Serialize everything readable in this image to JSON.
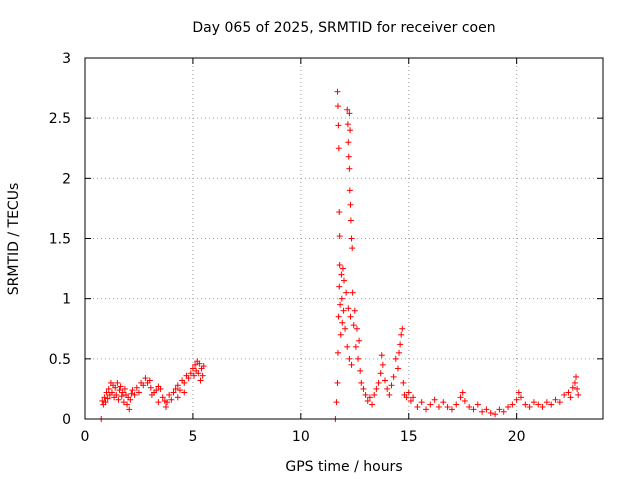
{
  "chart_data": {
    "type": "scatter",
    "title": "Day 065 of 2025, SRMTID for receiver coen",
    "xlabel": "GPS time / hours",
    "ylabel": "SRMTID / TECUs",
    "xlim": [
      0,
      24
    ],
    "ylim": [
      0,
      3
    ],
    "xticks": [
      0,
      5,
      10,
      15,
      20
    ],
    "xtick_labels": [
      "0",
      "5",
      "10",
      "15",
      "20"
    ],
    "yticks": [
      0,
      0.5,
      1,
      1.5,
      2,
      2.5,
      3
    ],
    "ytick_labels": [
      "0",
      "0.5",
      "1",
      "1.5",
      "2",
      "2.5",
      "3"
    ],
    "grid": true,
    "marker": "+",
    "color": "#ff0000",
    "series": [
      {
        "name": "SRMTID",
        "points": [
          [
            0.75,
            0.0
          ],
          [
            11.6,
            0.0
          ],
          [
            0.8,
            0.15
          ],
          [
            0.85,
            0.12
          ],
          [
            0.9,
            0.18
          ],
          [
            0.95,
            0.14
          ],
          [
            1.0,
            0.22
          ],
          [
            1.05,
            0.17
          ],
          [
            1.1,
            0.25
          ],
          [
            1.15,
            0.2
          ],
          [
            1.2,
            0.3
          ],
          [
            1.25,
            0.22
          ],
          [
            1.3,
            0.28
          ],
          [
            1.35,
            0.18
          ],
          [
            1.4,
            0.26
          ],
          [
            1.45,
            0.2
          ],
          [
            1.5,
            0.3
          ],
          [
            1.55,
            0.16
          ],
          [
            1.6,
            0.24
          ],
          [
            1.65,
            0.27
          ],
          [
            1.7,
            0.19
          ],
          [
            1.75,
            0.22
          ],
          [
            1.8,
            0.14
          ],
          [
            1.85,
            0.25
          ],
          [
            1.9,
            0.2
          ],
          [
            1.95,
            0.12
          ],
          [
            2.0,
            0.18
          ],
          [
            2.05,
            0.08
          ],
          [
            2.1,
            0.16
          ],
          [
            2.15,
            0.21
          ],
          [
            2.2,
            0.24
          ],
          [
            2.3,
            0.2
          ],
          [
            2.4,
            0.26
          ],
          [
            2.5,
            0.22
          ],
          [
            2.6,
            0.3
          ],
          [
            2.7,
            0.28
          ],
          [
            2.8,
            0.34
          ],
          [
            2.9,
            0.3
          ],
          [
            3.0,
            0.32
          ],
          [
            3.05,
            0.26
          ],
          [
            3.1,
            0.2
          ],
          [
            3.2,
            0.22
          ],
          [
            3.3,
            0.24
          ],
          [
            3.4,
            0.27
          ],
          [
            3.5,
            0.25
          ],
          [
            3.6,
            0.18
          ],
          [
            3.7,
            0.15
          ],
          [
            3.75,
            0.1
          ],
          [
            3.8,
            0.14
          ],
          [
            3.9,
            0.2
          ],
          [
            4.0,
            0.16
          ],
          [
            4.1,
            0.22
          ],
          [
            4.2,
            0.25
          ],
          [
            4.3,
            0.28
          ],
          [
            4.4,
            0.24
          ],
          [
            4.5,
            0.32
          ],
          [
            4.6,
            0.3
          ],
          [
            4.7,
            0.36
          ],
          [
            4.8,
            0.34
          ],
          [
            4.9,
            0.38
          ],
          [
            5.0,
            0.42
          ],
          [
            5.05,
            0.36
          ],
          [
            5.1,
            0.45
          ],
          [
            5.15,
            0.4
          ],
          [
            5.2,
            0.48
          ],
          [
            5.25,
            0.38
          ],
          [
            5.3,
            0.46
          ],
          [
            5.35,
            0.32
          ],
          [
            5.4,
            0.42
          ],
          [
            5.45,
            0.36
          ],
          [
            5.5,
            0.44
          ],
          [
            4.3,
            0.18
          ],
          [
            4.6,
            0.22
          ],
          [
            3.4,
            0.14
          ],
          [
            11.65,
            0.14
          ],
          [
            11.7,
            0.3
          ],
          [
            11.72,
            0.55
          ],
          [
            11.75,
            0.85
          ],
          [
            11.78,
            1.1
          ],
          [
            11.8,
            1.28
          ],
          [
            11.82,
            0.95
          ],
          [
            11.85,
            0.7
          ],
          [
            11.88,
            1.2
          ],
          [
            11.9,
            1.0
          ],
          [
            11.92,
            0.8
          ],
          [
            11.95,
            1.25
          ],
          [
            11.98,
            0.9
          ],
          [
            12.0,
            1.15
          ],
          [
            12.05,
            0.75
          ],
          [
            12.1,
            1.05
          ],
          [
            12.15,
            0.6
          ],
          [
            12.2,
            0.92
          ],
          [
            12.25,
            0.5
          ],
          [
            12.3,
            0.85
          ],
          [
            12.35,
            0.45
          ],
          [
            12.4,
            1.05
          ],
          [
            12.45,
            0.78
          ],
          [
            12.5,
            0.9
          ],
          [
            12.55,
            0.6
          ],
          [
            12.6,
            0.75
          ],
          [
            12.65,
            0.5
          ],
          [
            12.7,
            0.65
          ],
          [
            12.75,
            0.4
          ],
          [
            12.8,
            0.3
          ],
          [
            11.7,
            2.72
          ],
          [
            11.72,
            2.6
          ],
          [
            11.74,
            2.44
          ],
          [
            11.76,
            2.25
          ],
          [
            11.78,
            1.72
          ],
          [
            11.8,
            1.52
          ],
          [
            12.15,
            2.57
          ],
          [
            12.18,
            2.45
          ],
          [
            12.2,
            2.3
          ],
          [
            12.22,
            2.18
          ],
          [
            12.25,
            2.08
          ],
          [
            12.27,
            1.9
          ],
          [
            12.3,
            1.78
          ],
          [
            12.32,
            1.65
          ],
          [
            12.35,
            1.5
          ],
          [
            12.38,
            1.42
          ],
          [
            12.25,
            2.54
          ],
          [
            12.28,
            2.4
          ],
          [
            12.9,
            0.25
          ],
          [
            13.0,
            0.2
          ],
          [
            13.1,
            0.15
          ],
          [
            13.2,
            0.18
          ],
          [
            13.3,
            0.12
          ],
          [
            13.4,
            0.2
          ],
          [
            13.5,
            0.25
          ],
          [
            13.6,
            0.3
          ],
          [
            13.7,
            0.38
          ],
          [
            13.75,
            0.53
          ],
          [
            13.8,
            0.45
          ],
          [
            13.9,
            0.32
          ],
          [
            14.0,
            0.25
          ],
          [
            14.1,
            0.2
          ],
          [
            14.2,
            0.28
          ],
          [
            14.3,
            0.35
          ],
          [
            14.4,
            0.5
          ],
          [
            14.5,
            0.42
          ],
          [
            14.55,
            0.55
          ],
          [
            14.6,
            0.62
          ],
          [
            14.65,
            0.7
          ],
          [
            14.7,
            0.75
          ],
          [
            14.75,
            0.3
          ],
          [
            14.8,
            0.2
          ],
          [
            14.9,
            0.18
          ],
          [
            15.0,
            0.22
          ],
          [
            15.1,
            0.15
          ],
          [
            15.2,
            0.18
          ],
          [
            15.4,
            0.1
          ],
          [
            15.6,
            0.14
          ],
          [
            15.8,
            0.08
          ],
          [
            16.0,
            0.12
          ],
          [
            16.2,
            0.16
          ],
          [
            16.4,
            0.1
          ],
          [
            16.6,
            0.14
          ],
          [
            16.8,
            0.1
          ],
          [
            17.0,
            0.08
          ],
          [
            17.2,
            0.12
          ],
          [
            17.4,
            0.18
          ],
          [
            17.5,
            0.22
          ],
          [
            17.6,
            0.15
          ],
          [
            17.8,
            0.1
          ],
          [
            18.0,
            0.08
          ],
          [
            18.2,
            0.12
          ],
          [
            18.4,
            0.06
          ],
          [
            18.6,
            0.08
          ],
          [
            18.8,
            0.05
          ],
          [
            19.0,
            0.04
          ],
          [
            19.2,
            0.08
          ],
          [
            19.4,
            0.06
          ],
          [
            19.6,
            0.1
          ],
          [
            19.8,
            0.12
          ],
          [
            20.0,
            0.16
          ],
          [
            20.1,
            0.22
          ],
          [
            20.2,
            0.18
          ],
          [
            20.4,
            0.12
          ],
          [
            20.6,
            0.1
          ],
          [
            20.8,
            0.14
          ],
          [
            21.0,
            0.12
          ],
          [
            21.2,
            0.1
          ],
          [
            21.4,
            0.14
          ],
          [
            21.6,
            0.12
          ],
          [
            21.8,
            0.16
          ],
          [
            22.0,
            0.14
          ],
          [
            22.2,
            0.2
          ],
          [
            22.4,
            0.22
          ],
          [
            22.5,
            0.18
          ],
          [
            22.6,
            0.26
          ],
          [
            22.7,
            0.3
          ],
          [
            22.75,
            0.35
          ],
          [
            22.8,
            0.25
          ],
          [
            22.85,
            0.2
          ]
        ]
      }
    ]
  }
}
